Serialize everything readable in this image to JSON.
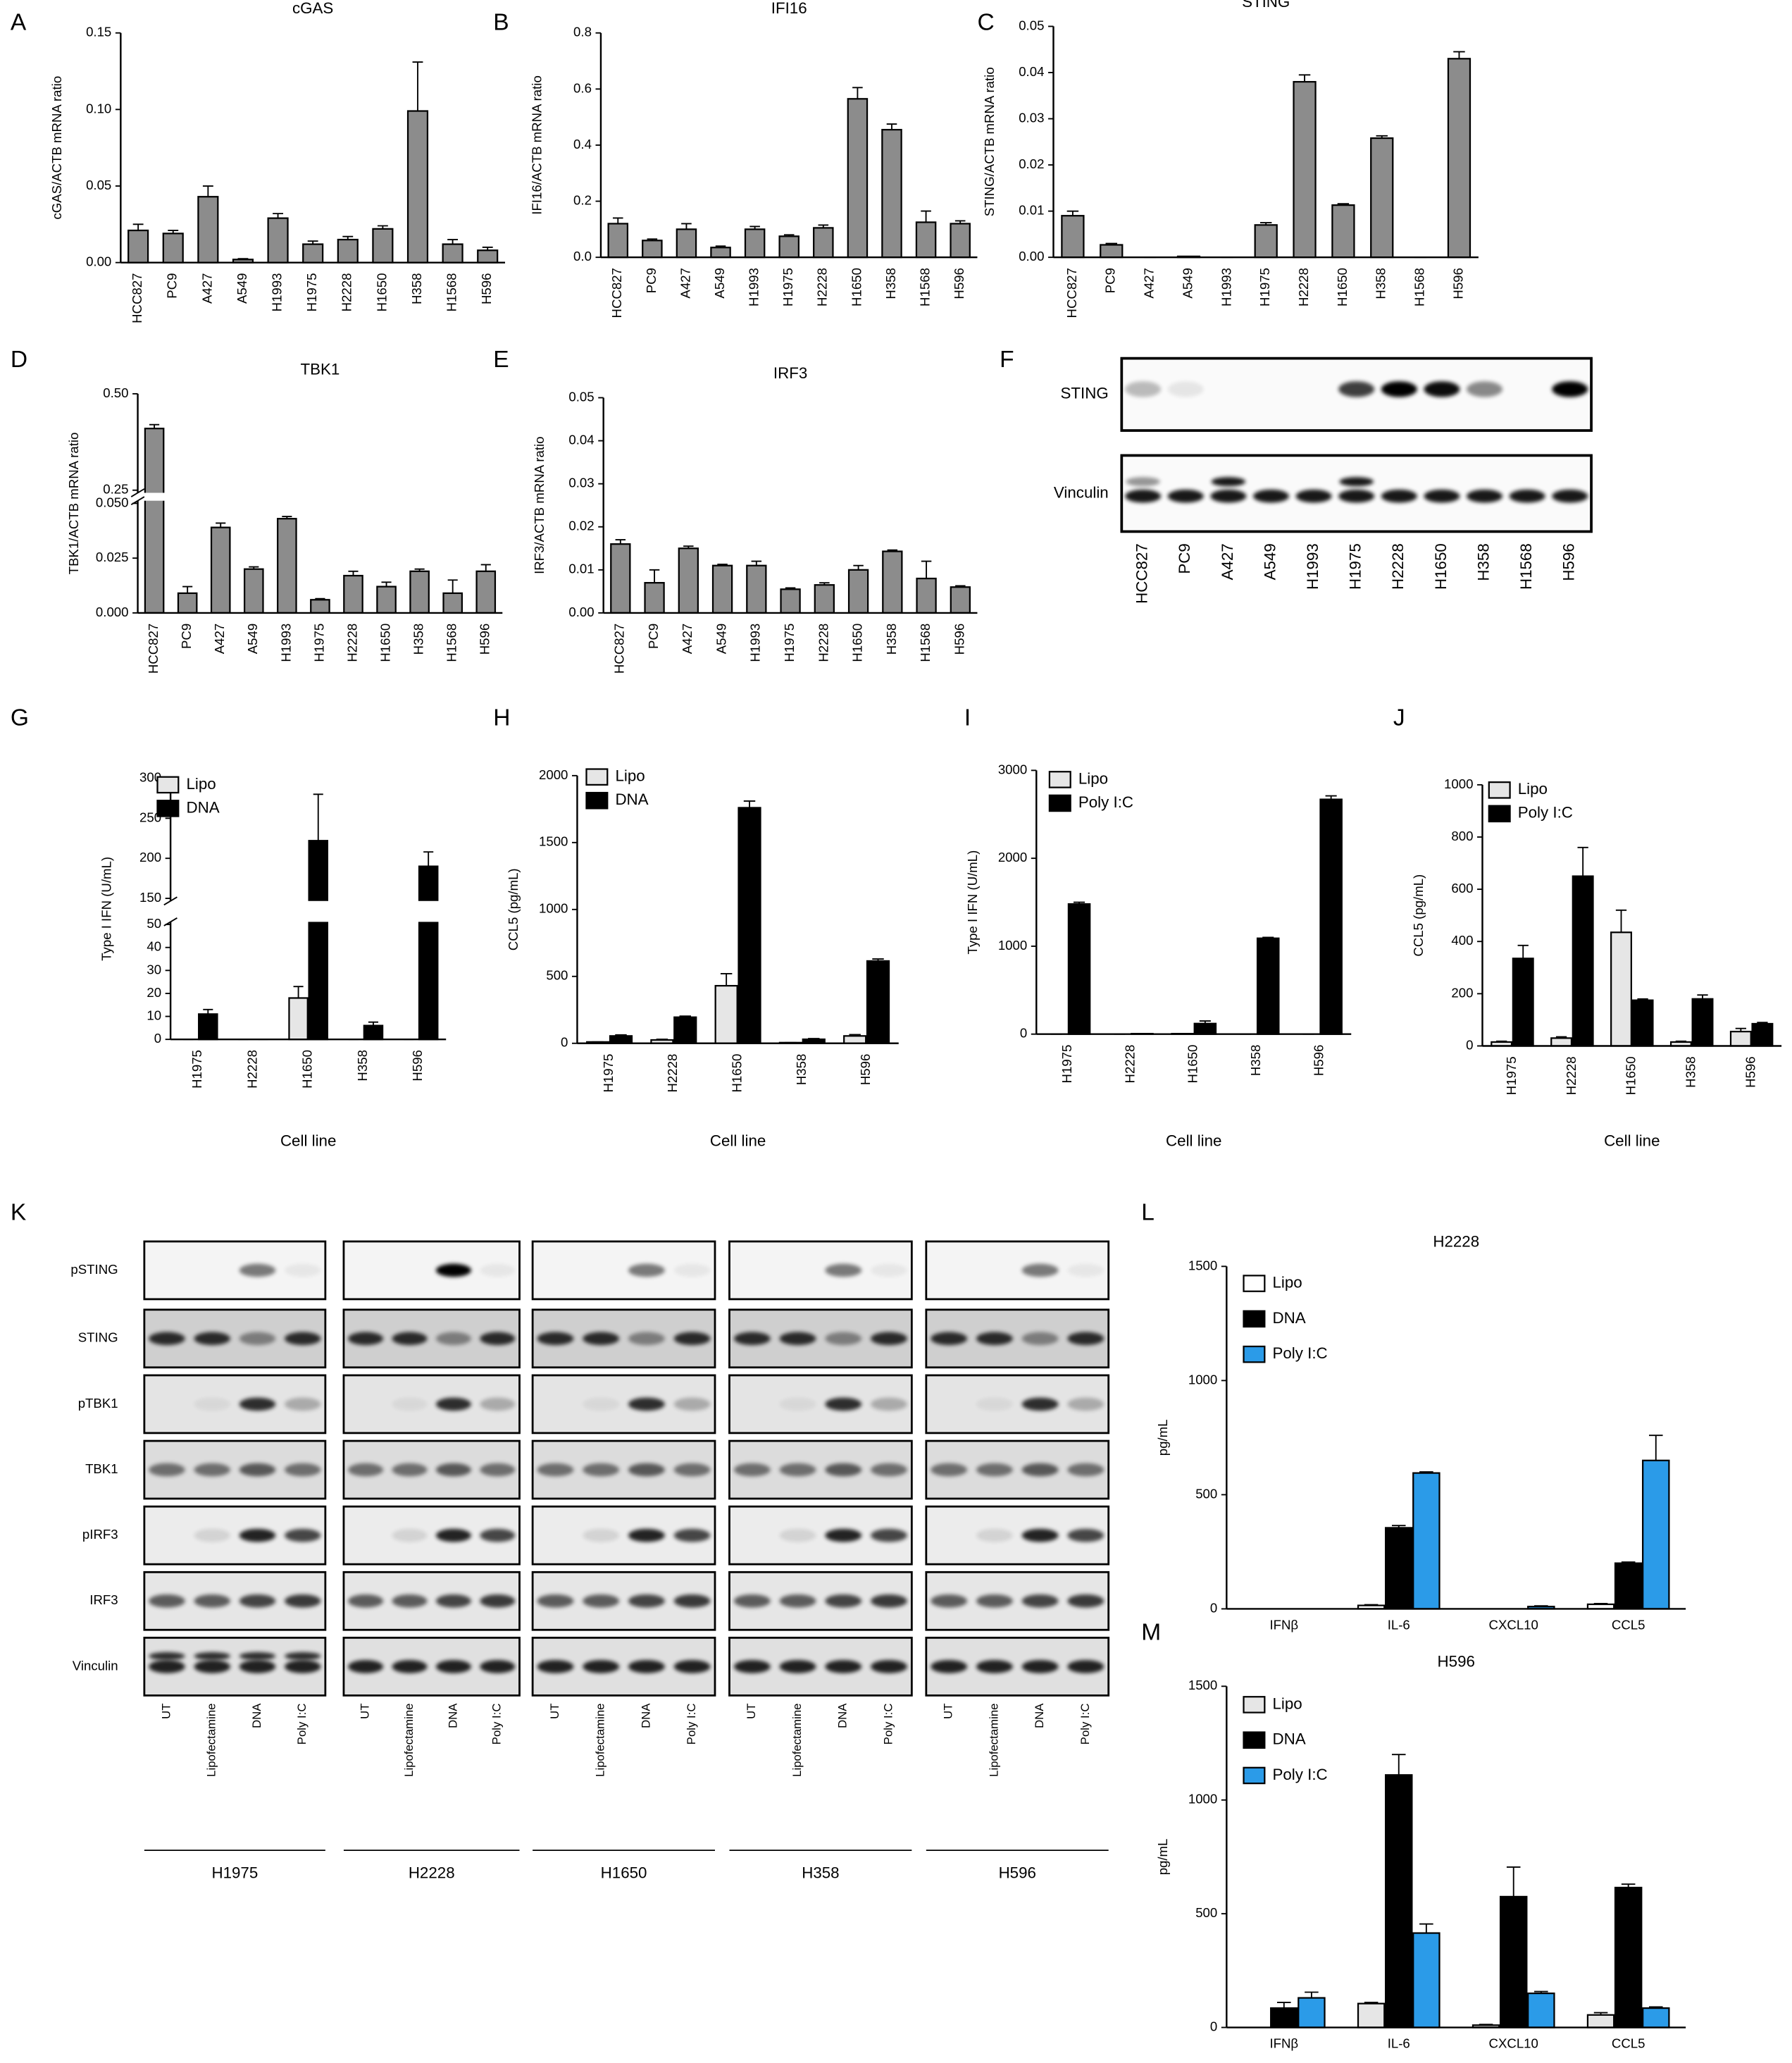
{
  "chart_data": [
    {
      "type": "bar",
      "panel": "A",
      "title": "cGAS",
      "y_label": "cGAS/ACTB mRNA ratio",
      "categories": [
        "HCC827",
        "PC9",
        "A427",
        "A549",
        "H1993",
        "H1975",
        "H2228",
        "H1650",
        "H358",
        "H1568",
        "H596"
      ],
      "values": [
        0.021,
        0.019,
        0.043,
        0.002,
        0.029,
        0.012,
        0.015,
        0.022,
        0.099,
        0.012,
        0.008
      ],
      "errors": [
        0.004,
        0.002,
        0.007,
        0.0005,
        0.003,
        0.002,
        0.002,
        0.002,
        0.032,
        0.003,
        0.002
      ],
      "color": "#8c8c8c",
      "ylim": [
        0,
        0.15
      ],
      "yticks": [
        {
          "value": 0,
          "label": "0.00"
        },
        0.05,
        {
          "value": 0.1,
          "label": "0.10"
        },
        0.15
      ],
      "grid": false
    },
    {
      "type": "bar",
      "panel": "B",
      "title": "IFI16",
      "y_label": "IFI16/ACTB mRNA ratio",
      "categories": [
        "HCC827",
        "PC9",
        "A427",
        "A549",
        "H1993",
        "H1975",
        "H2228",
        "H1650",
        "H358",
        "H1568",
        "H596"
      ],
      "values": [
        0.12,
        0.06,
        0.1,
        0.035,
        0.1,
        0.075,
        0.105,
        0.565,
        0.455,
        0.125,
        0.12
      ],
      "errors": [
        0.02,
        0.005,
        0.02,
        0.005,
        0.01,
        0.005,
        0.01,
        0.04,
        0.02,
        0.04,
        0.01
      ],
      "color": "#8c8c8c",
      "ylim": [
        0,
        0.8
      ],
      "yticks": [
        {
          "value": 0,
          "label": "0.0"
        },
        0.2,
        0.4,
        0.6,
        0.8
      ],
      "grid": false
    },
    {
      "type": "bar",
      "panel": "C",
      "title": "STING",
      "y_label": "STING/ACTB mRNA ratio",
      "categories": [
        "HCC827",
        "PC9",
        "A427",
        "A549",
        "H1993",
        "H1975",
        "H2228",
        "H1650",
        "H358",
        "H1568",
        "H596"
      ],
      "values": [
        0.009,
        0.0027,
        0,
        0.0002,
        0,
        0.007,
        0.038,
        0.0113,
        0.0258,
        0,
        0.043
      ],
      "errors": [
        0.001,
        0.0003,
        0,
        0,
        0,
        0.0005,
        0.0015,
        0.0003,
        0.0005,
        0,
        0.0015
      ],
      "color": "#8c8c8c",
      "ylim": [
        0,
        0.05
      ],
      "yticks": [
        {
          "value": 0,
          "label": "0.00"
        },
        0.01,
        0.02,
        0.03,
        0.04,
        0.05
      ],
      "grid": false
    },
    {
      "type": "bar",
      "panel": "D",
      "title": "TBK1",
      "y_label": "TBK1/ACTB mRNA ratio",
      "categories": [
        "HCC827",
        "PC9",
        "A427",
        "A549",
        "H1993",
        "H1975",
        "H2228",
        "H1650",
        "H358",
        "H1568",
        "H596"
      ],
      "values": [
        0.41,
        0.009,
        0.039,
        0.02,
        0.043,
        0.006,
        0.017,
        0.012,
        0.019,
        0.009,
        0.019
      ],
      "errors": [
        0.01,
        0.003,
        0.002,
        0.001,
        0.001,
        0.0005,
        0.002,
        0.002,
        0.001,
        0.006,
        0.003
      ],
      "color": "#8c8c8c",
      "ylim": [
        0,
        0.5
      ],
      "axis_break": [
        0.05,
        0.25
      ],
      "yticks": [
        {
          "value": 0,
          "label": "0.000"
        },
        0.025,
        {
          "value": 0.05,
          "label": "0.050"
        },
        0.25,
        {
          "value": 0.5,
          "label": "0.50"
        }
      ],
      "grid": false
    },
    {
      "type": "bar",
      "panel": "E",
      "title": "IRF3",
      "y_label": "IRF3/ACTB mRNA ratio",
      "categories": [
        "HCC827",
        "PC9",
        "A427",
        "A549",
        "H1993",
        "H1975",
        "H2228",
        "H1650",
        "H358",
        "H1568",
        "H596"
      ],
      "values": [
        0.016,
        0.007,
        0.015,
        0.011,
        0.011,
        0.0055,
        0.0065,
        0.01,
        0.0143,
        0.008,
        0.006
      ],
      "errors": [
        0.001,
        0.003,
        0.0005,
        0.0003,
        0.001,
        0.0003,
        0.0005,
        0.001,
        0.0003,
        0.004,
        0.0003
      ],
      "color": "#8c8c8c",
      "ylim": [
        0,
        0.05
      ],
      "yticks": [
        {
          "value": 0,
          "label": "0.00"
        },
        0.01,
        0.02,
        0.03,
        0.04,
        0.05
      ],
      "grid": false
    },
    {
      "type": "bar",
      "panel": "G",
      "y_label": "Type I IFN (U/mL)",
      "x_label": "Cell line",
      "categories": [
        "H1975",
        "H2228",
        "H1650",
        "H358",
        "H596"
      ],
      "series": [
        {
          "name": "Lipo",
          "color": "#e6e6e6",
          "values": [
            0,
            0,
            18,
            0,
            0
          ],
          "errors": [
            0,
            0,
            5,
            0,
            0
          ]
        },
        {
          "name": "DNA",
          "color": "#000000",
          "values": [
            11,
            0,
            222,
            6,
            190
          ],
          "errors": [
            2,
            0,
            58,
            1.5,
            18
          ]
        }
      ],
      "ylim": [
        0,
        300
      ],
      "axis_break": [
        50,
        150
      ],
      "yticks": [
        0,
        10,
        20,
        30,
        40,
        50,
        150,
        200,
        250,
        300
      ],
      "grid": false,
      "legend": "top-left"
    },
    {
      "type": "bar",
      "panel": "H",
      "y_label": "CCL5 (pg/mL)",
      "x_label": "Cell line",
      "categories": [
        "H1975",
        "H2228",
        "H1650",
        "H358",
        "H596"
      ],
      "series": [
        {
          "name": "Lipo",
          "color": "#e6e6e6",
          "values": [
            10,
            25,
            430,
            5,
            55
          ],
          "errors": [
            0,
            5,
            90,
            0,
            10
          ]
        },
        {
          "name": "DNA",
          "color": "#000000",
          "values": [
            55,
            195,
            1760,
            30,
            615
          ],
          "errors": [
            8,
            8,
            50,
            5,
            15
          ]
        }
      ],
      "ylim": [
        0,
        2000
      ],
      "yticks": [
        0,
        500,
        1000,
        1500,
        2000
      ],
      "grid": false,
      "legend": "top-left"
    },
    {
      "type": "bar",
      "panel": "I",
      "y_label": "Type I IFN (U/mL)",
      "x_label": "Cell line",
      "categories": [
        "H1975",
        "H2228",
        "H1650",
        "H358",
        "H596"
      ],
      "series": [
        {
          "name": "Lipo",
          "color": "#e6e6e6",
          "values": [
            0,
            0,
            5,
            0,
            0
          ],
          "errors": [
            0,
            0,
            0,
            0,
            0
          ]
        },
        {
          "name": "Poly I:C",
          "color": "#000000",
          "values": [
            1480,
            5,
            120,
            1090,
            2670
          ],
          "errors": [
            20,
            0,
            30,
            10,
            40
          ]
        }
      ],
      "ylim": [
        0,
        3000
      ],
      "yticks": [
        0,
        1000,
        2000,
        3000
      ],
      "grid": false,
      "legend": "top-left"
    },
    {
      "type": "bar",
      "panel": "J",
      "y_label": "CCL5 (pg/mL)",
      "x_label": "Cell line",
      "categories": [
        "H1975",
        "H2228",
        "H1650",
        "H358",
        "H596"
      ],
      "series": [
        {
          "name": "Lipo",
          "color": "#e6e6e6",
          "values": [
            15,
            30,
            435,
            15,
            55
          ],
          "errors": [
            3,
            5,
            85,
            3,
            12
          ]
        },
        {
          "name": "Poly I:C",
          "color": "#000000",
          "values": [
            335,
            650,
            175,
            180,
            85
          ],
          "errors": [
            50,
            110,
            5,
            15,
            5
          ]
        }
      ],
      "ylim": [
        0,
        1000
      ],
      "yticks": [
        0,
        200,
        400,
        600,
        800,
        1000
      ],
      "grid": false,
      "legend": "top-left"
    },
    {
      "type": "bar",
      "panel": "L",
      "title": "H2228",
      "y_label": "pg/mL",
      "categories": [
        "IFNβ",
        "IL-6",
        "CXCL10",
        "CCL5"
      ],
      "series": [
        {
          "name": "Lipo",
          "color": "#ffffff",
          "values": [
            0,
            15,
            0,
            20
          ],
          "errors": [
            0,
            3,
            0,
            3
          ]
        },
        {
          "name": "DNA",
          "color": "#000000",
          "values": [
            0,
            355,
            0,
            200
          ],
          "errors": [
            0,
            10,
            0,
            5
          ]
        },
        {
          "name": "Poly I:C",
          "color": "#2b9be8",
          "values": [
            0,
            595,
            10,
            650
          ],
          "errors": [
            0,
            5,
            3,
            110
          ]
        }
      ],
      "ylim": [
        0,
        1500
      ],
      "yticks": [
        0,
        500,
        1000,
        1500
      ],
      "grid": false,
      "legend": "top-left"
    },
    {
      "type": "bar",
      "panel": "M",
      "title": "H596",
      "y_label": "pg/mL",
      "categories": [
        "IFNβ",
        "IL-6",
        "CXCL10",
        "CCL5"
      ],
      "series": [
        {
          "name": "Lipo",
          "color": "#e6e6e6",
          "values": [
            0,
            105,
            10,
            55
          ],
          "errors": [
            0,
            5,
            3,
            10
          ]
        },
        {
          "name": "DNA",
          "color": "#000000",
          "values": [
            85,
            1110,
            575,
            615
          ],
          "errors": [
            25,
            90,
            130,
            15
          ]
        },
        {
          "name": "Poly I:C",
          "color": "#2b9be8",
          "values": [
            130,
            415,
            150,
            85
          ],
          "errors": [
            25,
            40,
            8,
            5
          ]
        }
      ],
      "ylim": [
        0,
        1500
      ],
      "yticks": [
        0,
        500,
        1000,
        1500
      ],
      "grid": false,
      "legend": "top-left"
    }
  ],
  "blot_f": {
    "panel": "F",
    "rows": [
      "STING",
      "Vinculin"
    ],
    "lanes": [
      "HCC827",
      "PC9",
      "A427",
      "A549",
      "H1993",
      "H1975",
      "H2228",
      "H1650",
      "H358",
      "H1568",
      "H596"
    ],
    "lane_colors": [
      "#000000",
      "#000000",
      "#000000",
      "#000000",
      "#000000",
      "#b22222",
      "#b22222",
      "#b22222",
      "#b22222",
      "#000000",
      "#b22222"
    ]
  },
  "blot_k": {
    "panel": "K",
    "rows": [
      "pSTING",
      "STING",
      "pTBK1",
      "TBK1",
      "pIRF3",
      "IRF3",
      "Vinculin"
    ],
    "lanes": [
      "UT",
      "Lipofectamine",
      "DNA",
      "Poly I:C"
    ],
    "groups": [
      "H1975",
      "H2228",
      "H1650",
      "H358",
      "H596"
    ]
  }
}
